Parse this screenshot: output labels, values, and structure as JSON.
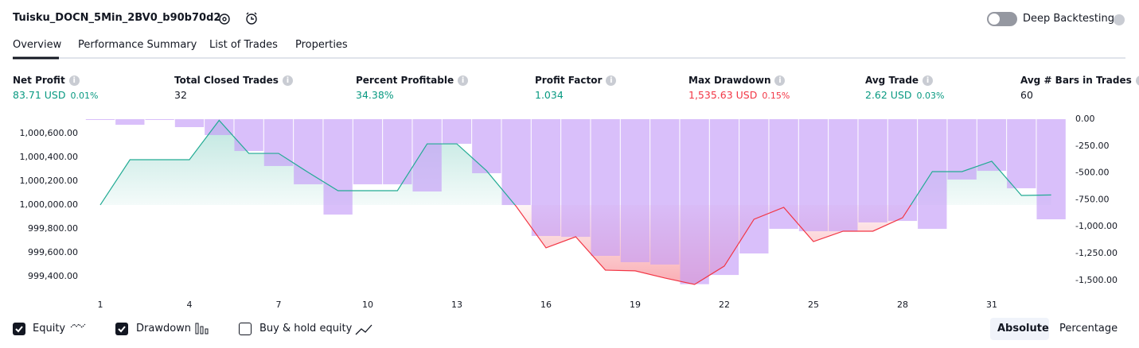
{
  "header": {
    "title": "Tuisku_DOCN_5Min_2BV0_b90b70d2",
    "deep_backtesting": "Deep Backtesting"
  },
  "tabs": [
    "Overview",
    "Performance Summary",
    "List of Trades",
    "Properties"
  ],
  "metrics": [
    {
      "label": "Net Profit",
      "value": "83.71 USD",
      "percent": "0.01%",
      "color": "#089981"
    },
    {
      "label": "Total Closed Trades",
      "value": "32",
      "color": "#131722"
    },
    {
      "label": "Percent Profitable",
      "value": "34.38%",
      "color": "#089981"
    },
    {
      "label": "Profit Factor",
      "value": "1.034",
      "color": "#089981"
    },
    {
      "label": "Max Drawdown",
      "value": "1,535.63 USD",
      "percent": "0.15%",
      "color": "#f23645"
    },
    {
      "label": "Avg Trade",
      "value": "2.62 USD",
      "percent": "0.03%",
      "color": "#089981"
    },
    {
      "label": "Avg # Bars in Trades",
      "value": "60",
      "color": "#131722"
    }
  ],
  "chart_data": {
    "type": "line",
    "x": [
      1,
      2,
      3,
      4,
      5,
      6,
      7,
      8,
      9,
      10,
      11,
      12,
      13,
      14,
      15,
      16,
      17,
      18,
      19,
      20,
      21,
      22,
      23,
      24,
      25,
      26,
      27,
      28,
      29,
      30,
      31,
      32,
      33
    ],
    "xlim": [
      0.5,
      33.5
    ],
    "xticks": [
      1,
      4,
      7,
      10,
      13,
      16,
      19,
      22,
      25,
      28,
      31
    ],
    "ylim": [
      999253,
      1000720
    ],
    "yticks": [
      {
        "value": 999400,
        "label": "999,400.00"
      },
      {
        "value": 999600,
        "label": "999,600.00"
      },
      {
        "value": 999800,
        "label": "999,800.00"
      },
      {
        "value": 1000000,
        "label": "1,000,000.00"
      },
      {
        "value": 1000200,
        "label": "1,000,200.00"
      },
      {
        "value": 1000400,
        "label": "1,000,400.00"
      },
      {
        "value": 1000600,
        "label": "1,000,600.00"
      }
    ],
    "y2lim": [
      -1627,
      0
    ],
    "y2ticks": [
      {
        "value": 0,
        "label": "0.00"
      },
      {
        "value": -250,
        "label": "-250.00"
      },
      {
        "value": -500,
        "label": "-500.00"
      },
      {
        "value": -750,
        "label": "-750.00"
      },
      {
        "value": -1000,
        "label": "-1,000.00"
      },
      {
        "value": -1250,
        "label": "-1,250.00"
      },
      {
        "value": -1500,
        "label": "-1,500.00"
      }
    ],
    "series": [
      {
        "name": "Equity",
        "type": "line",
        "axis": "y",
        "color": "#22ab94",
        "negative_color": "#f23645",
        "values": [
          1000000,
          1000380,
          1000380,
          1000380,
          1000710,
          1000433,
          1000433,
          1000273,
          1000120,
          1000120,
          1000120,
          1000513,
          1000513,
          1000287,
          999987,
          999640,
          999733,
          999453,
          999447,
          999387,
          999333,
          999487,
          999880,
          999980,
          999693,
          999780,
          999780,
          999893,
          1000280,
          1000280,
          1000367,
          1000080,
          1000084
        ]
      },
      {
        "name": "Drawdown",
        "type": "bar",
        "axis": "y2",
        "color": "#c59cf7",
        "values": [
          -5,
          -52,
          -5,
          -74,
          -148,
          -296,
          -436,
          -606,
          -888,
          -606,
          -606,
          -673,
          -229,
          -503,
          -799,
          -1087,
          -1095,
          -1272,
          -1331,
          -1353,
          -1536,
          -1450,
          -1250,
          -1021,
          -1043,
          -1043,
          -961,
          -947,
          -1021,
          -562,
          -481,
          -643,
          -932
        ]
      }
    ],
    "extra_legend": "Buy & hold equity",
    "modes": [
      "Absolute",
      "Percentage"
    ],
    "active_mode": "Absolute"
  }
}
